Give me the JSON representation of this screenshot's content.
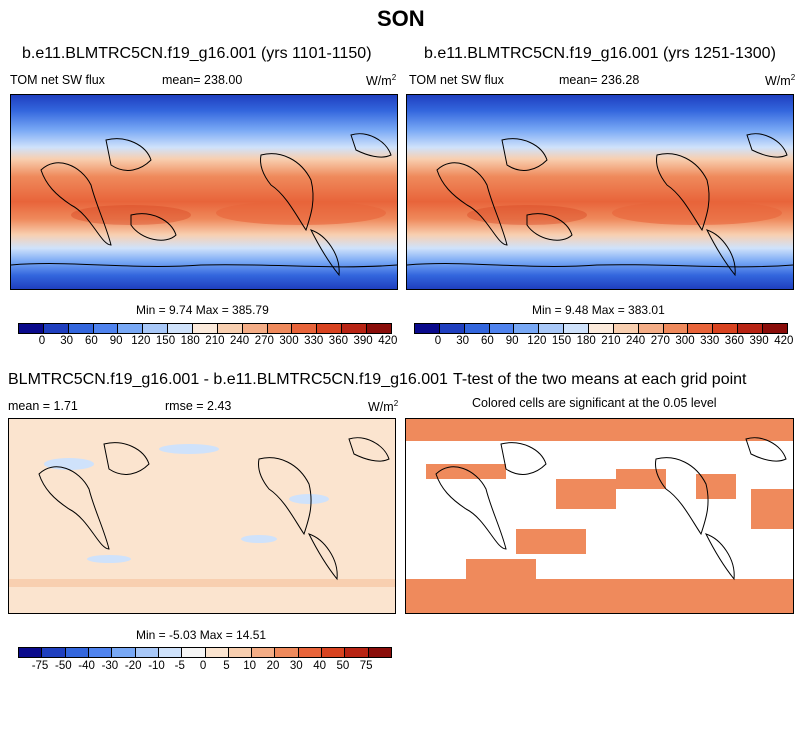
{
  "season": "SON",
  "panel1": {
    "case_title": "b.e11.BLMTRC5CN.f19_g16.001 (yrs 1101-1150)",
    "variable": "TOM net SW flux",
    "mean": "mean= 238.00",
    "units": "W/m",
    "units_sup": "2",
    "minmax": "Min =   9.74 Max = 385.79"
  },
  "panel2": {
    "case_title": "b.e11.BLMTRC5CN.f19_g16.001 (yrs 1251-1300)",
    "variable": "TOM net SW flux",
    "mean": "mean= 236.28",
    "units": "W/m",
    "units_sup": "2",
    "minmax": "Min =   9.48 Max = 383.01"
  },
  "panel3": {
    "diff_title": "BLMTRC5CN.f19_g16.001 - b.e11.BLMTRC5CN.f19_g16.001",
    "mean": "mean =   1.71",
    "rmse": "rmse =   2.43",
    "units": "W/m",
    "units_sup": "2",
    "minmax": "Min =  -5.03 Max =  14.51"
  },
  "panel4": {
    "ttest_title": "T-test of the two means at each grid point",
    "note": "Colored cells are significant at the 0.05 level"
  },
  "colorbar_abs": {
    "ticks": [
      "0",
      "30",
      "60",
      "90",
      "120",
      "150",
      "180",
      "210",
      "240",
      "270",
      "300",
      "330",
      "360",
      "390",
      "420"
    ],
    "colors": [
      "#0a0a8c",
      "#1f3fbf",
      "#3366dd",
      "#4f83ee",
      "#78a8f5",
      "#a8c8f8",
      "#cfe2fb",
      "#fbeadb",
      "#f8cfb0",
      "#f4ad86",
      "#ef8a5c",
      "#e8643a",
      "#d84320",
      "#b82414",
      "#8a0d0a"
    ]
  },
  "colorbar_diff": {
    "ticks": [
      "-75",
      "-50",
      "-40",
      "-30",
      "-20",
      "-10",
      "-5",
      "0",
      "5",
      "10",
      "20",
      "30",
      "40",
      "50",
      "75"
    ],
    "colors": [
      "#0a0a8c",
      "#1f3fbf",
      "#3366dd",
      "#4f83ee",
      "#78a8f5",
      "#a8c8f8",
      "#cfe2fb",
      "#f5f5f5",
      "#fbe4cf",
      "#f8cfb0",
      "#f4ad86",
      "#ef8a5c",
      "#e8643a",
      "#d84320",
      "#b82414",
      "#8a0d0a"
    ]
  }
}
